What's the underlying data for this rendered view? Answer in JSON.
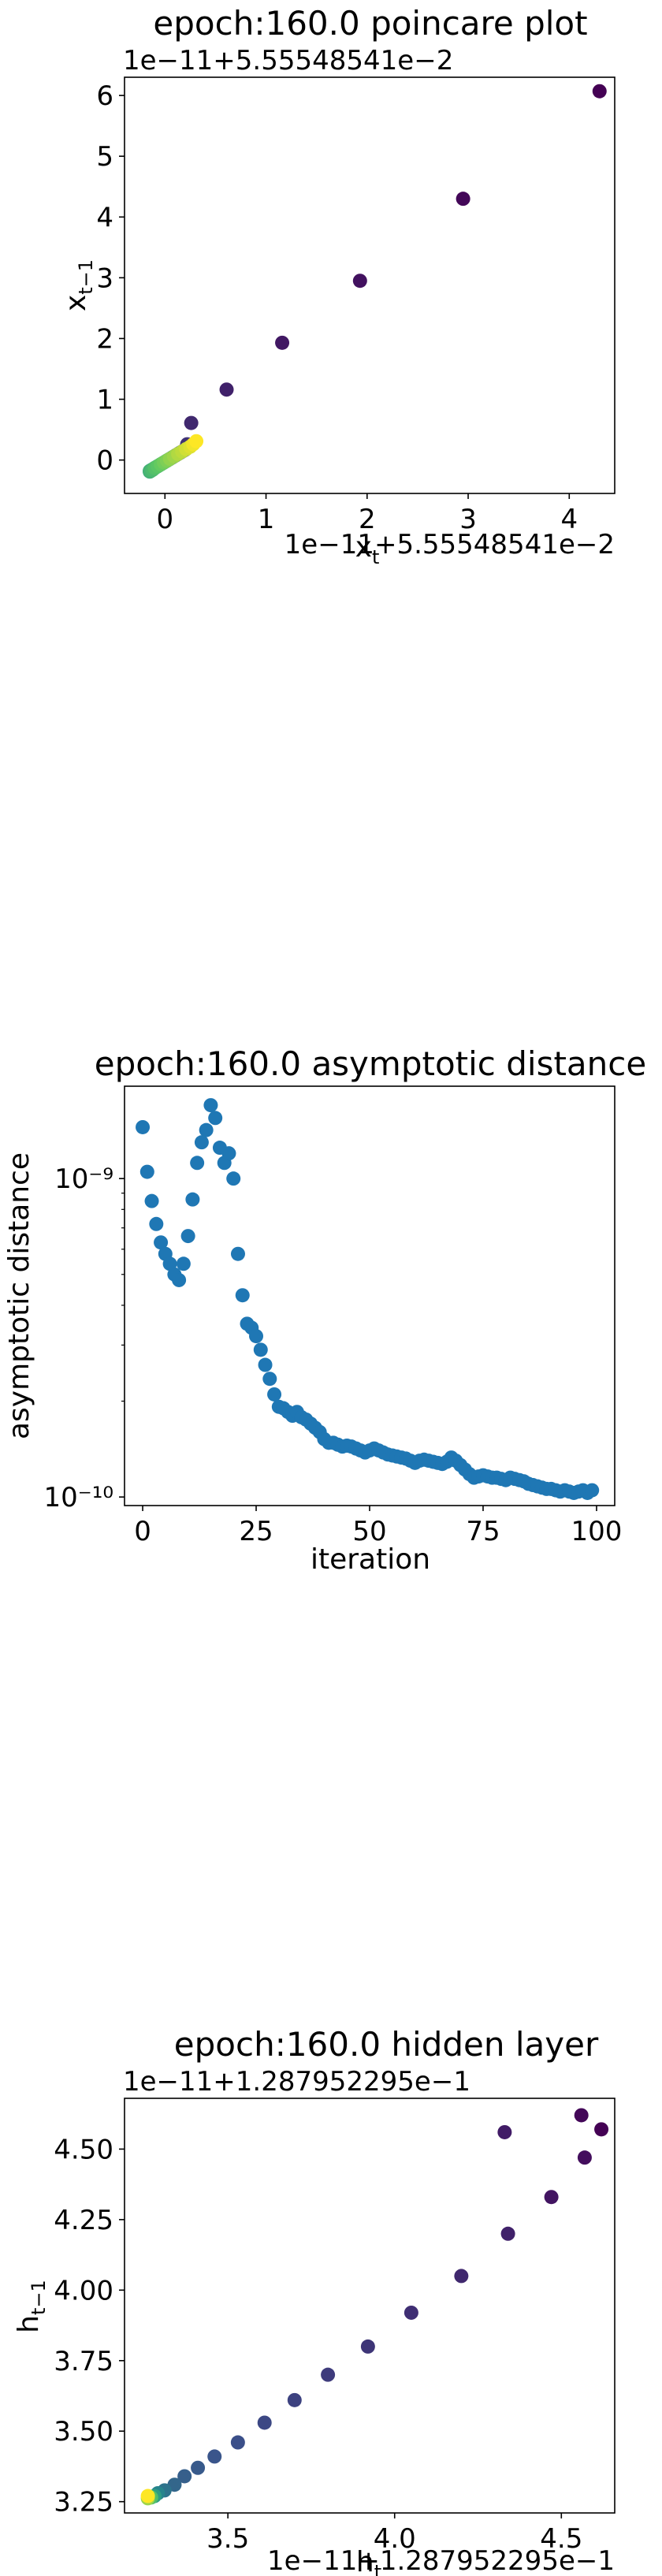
{
  "chart_data": [
    {
      "type": "scatter",
      "title": "epoch:160.0 poincare plot",
      "xlabel": "x_t",
      "ylabel": "x_{t-1}",
      "x_offset_label": "1e−11+5.55548541e−2",
      "y_offset_label": "1e−11+5.55548541e−2",
      "xlim": [
        -0.4,
        4.45
      ],
      "ylim": [
        -0.55,
        6.3
      ],
      "x_ticks": [
        0,
        1,
        2,
        3,
        4
      ],
      "x_tick_labels": [
        "0",
        "1",
        "2",
        "3",
        "4"
      ],
      "y_ticks": [
        0,
        1,
        2,
        3,
        4,
        5,
        6
      ],
      "y_tick_labels": [
        "0",
        "1",
        "2",
        "3",
        "4",
        "5",
        "6"
      ],
      "grid": false,
      "colormap": [
        "#440154",
        "#3b528b",
        "#21918c",
        "#5ec962",
        "#fde725"
      ],
      "series": [
        {
          "x": [
            4.3,
            2.95,
            1.93,
            1.16,
            0.61,
            0.26,
            0.22,
            0.2,
            0.18,
            0.16,
            0.14,
            0.12,
            0.1,
            0.08,
            0.06,
            0.04,
            0.02,
            0.0,
            -0.02,
            -0.04,
            -0.06,
            -0.08,
            -0.1,
            -0.12,
            -0.14,
            -0.15,
            -0.15,
            -0.14,
            -0.12,
            -0.1,
            -0.07,
            -0.04,
            -0.01,
            0.02,
            0.05,
            0.09,
            0.13,
            0.17,
            0.21,
            0.25,
            0.28,
            0.31
          ],
          "y": [
            6.07,
            4.3,
            2.95,
            1.93,
            1.16,
            0.61,
            0.26,
            0.17,
            0.15,
            0.13,
            0.11,
            0.09,
            0.07,
            0.05,
            0.03,
            0.01,
            -0.01,
            -0.03,
            -0.05,
            -0.07,
            -0.09,
            -0.11,
            -0.13,
            -0.15,
            -0.17,
            -0.18,
            -0.19,
            -0.18,
            -0.16,
            -0.13,
            -0.1,
            -0.07,
            -0.04,
            -0.01,
            0.02,
            0.06,
            0.1,
            0.14,
            0.18,
            0.22,
            0.26,
            0.31
          ],
          "c": [
            0.0,
            0.02,
            0.05,
            0.07,
            0.1,
            0.12,
            0.15,
            0.17,
            0.2,
            0.22,
            0.24,
            0.27,
            0.29,
            0.32,
            0.34,
            0.37,
            0.39,
            0.41,
            0.44,
            0.46,
            0.49,
            0.51,
            0.54,
            0.56,
            0.59,
            0.61,
            0.63,
            0.66,
            0.68,
            0.71,
            0.73,
            0.76,
            0.78,
            0.8,
            0.83,
            0.85,
            0.88,
            0.9,
            0.93,
            0.95,
            0.98,
            1.0
          ]
        }
      ]
    },
    {
      "type": "scatter",
      "title": "epoch:160.0 asymptotic distance",
      "xlabel": "iteration",
      "ylabel": "asymptotic distance",
      "yscale": "log",
      "xlim": [
        -4,
        104
      ],
      "ylim": [
        9.4e-11,
        1.95e-09
      ],
      "x_ticks": [
        0,
        25,
        50,
        75,
        100
      ],
      "x_tick_labels": [
        "0",
        "25",
        "50",
        "75",
        "100"
      ],
      "y_ticks": [
        1e-10,
        1e-09
      ],
      "y_tick_labels": [
        "10⁻¹⁰",
        "10⁻⁹"
      ],
      "grid": false,
      "series": [
        {
          "color": "#1f77b4",
          "x": [
            0,
            1,
            2,
            3,
            4,
            5,
            6,
            7,
            8,
            9,
            10,
            11,
            12,
            13,
            14,
            15,
            16,
            17,
            18,
            19,
            20,
            21,
            22,
            23,
            24,
            25,
            26,
            27,
            28,
            29,
            30,
            31,
            32,
            33,
            34,
            35,
            36,
            37,
            38,
            39,
            40,
            41,
            42,
            43,
            44,
            45,
            46,
            47,
            48,
            49,
            50,
            51,
            52,
            53,
            54,
            55,
            56,
            57,
            58,
            59,
            60,
            61,
            62,
            63,
            64,
            65,
            66,
            67,
            68,
            69,
            70,
            71,
            72,
            73,
            74,
            75,
            76,
            77,
            78,
            79,
            80,
            81,
            82,
            83,
            84,
            85,
            86,
            87,
            88,
            89,
            90,
            91,
            92,
            93,
            94,
            95,
            96,
            97,
            98,
            99
          ],
          "values": [
            1.45e-09,
            1.05e-09,
            8.5e-10,
            7.2e-10,
            6.3e-10,
            5.8e-10,
            5.4e-10,
            5e-10,
            4.8e-10,
            5.4e-10,
            6.6e-10,
            8.6e-10,
            1.12e-09,
            1.3e-09,
            1.42e-09,
            1.7e-09,
            1.55e-09,
            1.25e-09,
            1.12e-09,
            1.2e-09,
            1e-09,
            5.8e-10,
            4.3e-10,
            3.5e-10,
            3.4e-10,
            3.2e-10,
            2.9e-10,
            2.6e-10,
            2.35e-10,
            2.1e-10,
            1.92e-10,
            1.9e-10,
            1.85e-10,
            1.8e-10,
            1.85e-10,
            1.78e-10,
            1.75e-10,
            1.7e-10,
            1.65e-10,
            1.6e-10,
            1.52e-10,
            1.48e-10,
            1.48e-10,
            1.46e-10,
            1.44e-10,
            1.45e-10,
            1.44e-10,
            1.42e-10,
            1.4e-10,
            1.38e-10,
            1.4e-10,
            1.42e-10,
            1.4e-10,
            1.38e-10,
            1.36e-10,
            1.35e-10,
            1.34e-10,
            1.33e-10,
            1.32e-10,
            1.3e-10,
            1.28e-10,
            1.3e-10,
            1.31e-10,
            1.3e-10,
            1.29e-10,
            1.28e-10,
            1.27e-10,
            1.29e-10,
            1.33e-10,
            1.3e-10,
            1.26e-10,
            1.22e-10,
            1.18e-10,
            1.15e-10,
            1.16e-10,
            1.17e-10,
            1.16e-10,
            1.15e-10,
            1.15e-10,
            1.14e-10,
            1.13e-10,
            1.15e-10,
            1.14e-10,
            1.13e-10,
            1.12e-10,
            1.1e-10,
            1.09e-10,
            1.08e-10,
            1.07e-10,
            1.06e-10,
            1.06e-10,
            1.05e-10,
            1.04e-10,
            1.05e-10,
            1.04e-10,
            1.03e-10,
            1.04e-10,
            1.05e-10,
            1.03e-10,
            1.05e-10
          ]
        }
      ]
    },
    {
      "type": "scatter",
      "title": "epoch:160.0 hidden layer",
      "xlabel": "h_t",
      "ylabel": "h_{t-1}",
      "x_offset_label": "1e−11+1.287952295e−1",
      "y_offset_label": "1e−11+1.287952295e−1",
      "xlim": [
        3.19,
        4.66
      ],
      "ylim": [
        3.21,
        4.68
      ],
      "x_ticks": [
        3.5,
        4.0,
        4.5
      ],
      "x_tick_labels": [
        "3.5",
        "4.0",
        "4.5"
      ],
      "y_ticks": [
        3.25,
        3.5,
        3.75,
        4.0,
        4.25,
        4.5
      ],
      "y_tick_labels": [
        "3.25",
        "3.50",
        "3.75",
        "4.00",
        "4.25",
        "4.50"
      ],
      "grid": false,
      "colormap": [
        "#440154",
        "#3b528b",
        "#21918c",
        "#5ec962",
        "#fde725"
      ],
      "series": [
        {
          "x": [
            4.62,
            4.56,
            4.57,
            4.47,
            4.33,
            4.34,
            4.2,
            4.05,
            3.92,
            3.8,
            3.7,
            3.61,
            3.53,
            3.46,
            3.41,
            3.37,
            3.34,
            3.31,
            3.29,
            3.28,
            3.27,
            3.26,
            3.26
          ],
          "y": [
            4.57,
            4.62,
            4.47,
            4.33,
            4.56,
            4.2,
            4.05,
            3.92,
            3.8,
            3.7,
            3.61,
            3.53,
            3.46,
            3.41,
            3.37,
            3.34,
            3.31,
            3.29,
            3.28,
            3.27,
            3.265,
            3.262,
            3.27
          ],
          "c": [
            0.0,
            0.02,
            0.04,
            0.06,
            0.08,
            0.1,
            0.12,
            0.14,
            0.16,
            0.18,
            0.2,
            0.22,
            0.24,
            0.26,
            0.28,
            0.3,
            0.33,
            0.38,
            0.45,
            0.55,
            0.7,
            0.85,
            1.0
          ]
        }
      ]
    }
  ]
}
